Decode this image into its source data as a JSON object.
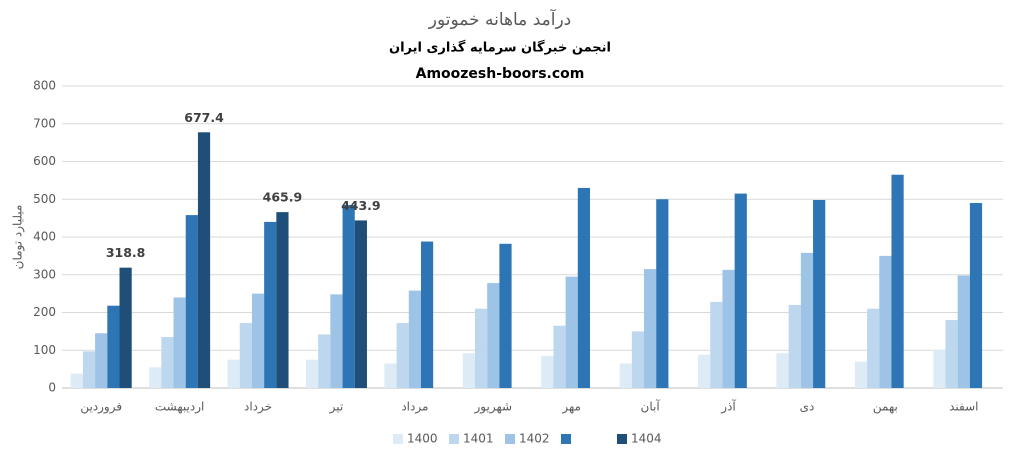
{
  "chart_data": {
    "type": "bar",
    "title": "درآمد ماهانه خموتور",
    "subtitle": "انجمن خبرگان سرمایه گذاری ایران",
    "source": "Amoozesh-boors.com",
    "y_label": "میلیارد تومان",
    "categories": [
      "فروردین",
      "اردیبهشت",
      "خرداد",
      "تیر",
      "مرداد",
      "شهریور",
      "مهر",
      "آبان",
      "آذر",
      "دی",
      "بهمن",
      "اسفند"
    ],
    "series": [
      {
        "name": "1400",
        "color": "#ddebf7",
        "values": [
          38,
          55,
          75,
          75,
          65,
          92,
          85,
          65,
          88,
          92,
          70,
          102
        ]
      },
      {
        "name": "1401",
        "color": "#bdd7ee",
        "values": [
          97,
          135,
          172,
          142,
          172,
          210,
          165,
          150,
          228,
          220,
          210,
          180
        ]
      },
      {
        "name": "1402",
        "color": "#9dc3e6",
        "values": [
          145,
          240,
          250,
          248,
          258,
          278,
          295,
          315,
          313,
          358,
          350,
          298
        ]
      },
      {
        "color": "#2e75b6",
        "values": [
          218,
          458,
          440,
          485,
          388,
          382,
          530,
          500,
          515,
          498,
          565,
          490
        ]
      },
      {
        "name": "1404",
        "color": "#1f4e79",
        "data_labels": true,
        "values": [
          318.8,
          677.4,
          465.9,
          443.9,
          null,
          null,
          null,
          null,
          null,
          null,
          null,
          null
        ]
      }
    ],
    "ylim": [
      0,
      800
    ],
    "yticks": [
      0,
      100,
      200,
      300,
      400,
      500,
      600,
      700,
      800
    ],
    "grid": true,
    "legend": "bottom"
  }
}
